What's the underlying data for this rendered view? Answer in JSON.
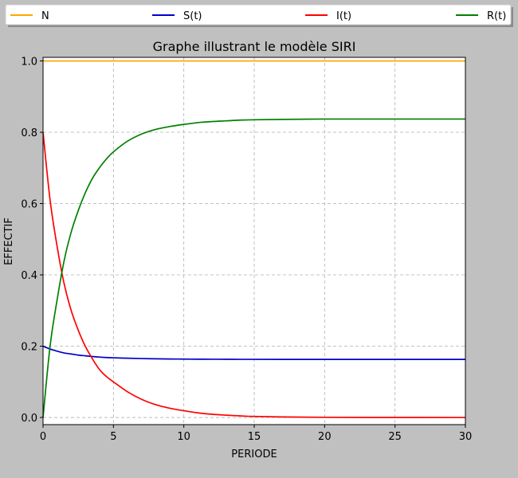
{
  "chart_data": {
    "type": "line",
    "title": "Graphe illustrant le modèle SIRI",
    "xlabel": "PERIODE",
    "ylabel": "EFFECTIF",
    "xlim": [
      0,
      30
    ],
    "ylim": [
      -0.02,
      1.01
    ],
    "xticks": [
      0,
      5,
      10,
      15,
      20,
      25,
      30
    ],
    "yticks": [
      0.0,
      0.2,
      0.4,
      0.6,
      0.8,
      1.0
    ],
    "xtick_labels": [
      "0",
      "5",
      "10",
      "15",
      "20",
      "25",
      "30"
    ],
    "ytick_labels": [
      "0.0",
      "0.2",
      "0.4",
      "0.6",
      "0.8",
      "1.0"
    ],
    "grid": true,
    "legend_position": "top, spanning full width",
    "x": [
      0,
      0.5,
      1,
      1.5,
      2,
      2.5,
      3,
      3.5,
      4,
      4.5,
      5,
      6,
      7,
      8,
      9,
      10,
      11,
      12,
      13,
      14,
      15,
      17,
      20,
      25,
      30
    ],
    "series": [
      {
        "name": "N",
        "color": "#ffa500",
        "values": [
          1,
          1,
          1,
          1,
          1,
          1,
          1,
          1,
          1,
          1,
          1,
          1,
          1,
          1,
          1,
          1,
          1,
          1,
          1,
          1,
          1,
          1,
          1,
          1,
          1
        ]
      },
      {
        "name": "S(t)",
        "color": "#0000cc",
        "values": [
          0.2,
          0.192,
          0.186,
          0.181,
          0.178,
          0.175,
          0.173,
          0.171,
          0.1695,
          0.1683,
          0.1675,
          0.1662,
          0.1653,
          0.1646,
          0.1641,
          0.1638,
          0.1635,
          0.1634,
          0.1632,
          0.1631,
          0.1631,
          0.163,
          0.163,
          0.163,
          0.163
        ]
      },
      {
        "name": "I(t)",
        "color": "#ff0000",
        "values": [
          0.8,
          0.61,
          0.48,
          0.375,
          0.3,
          0.245,
          0.2,
          0.165,
          0.135,
          0.115,
          0.1,
          0.072,
          0.051,
          0.036,
          0.026,
          0.019,
          0.013,
          0.009,
          0.0065,
          0.0045,
          0.003,
          0.0015,
          0.0005,
          0.0001,
          0.0
        ]
      },
      {
        "name": "R(t)",
        "color": "#008000",
        "values": [
          0.0,
          0.2,
          0.33,
          0.44,
          0.52,
          0.58,
          0.63,
          0.67,
          0.7,
          0.725,
          0.745,
          0.775,
          0.795,
          0.808,
          0.816,
          0.822,
          0.827,
          0.83,
          0.832,
          0.834,
          0.835,
          0.836,
          0.837,
          0.837,
          0.837
        ]
      }
    ]
  }
}
